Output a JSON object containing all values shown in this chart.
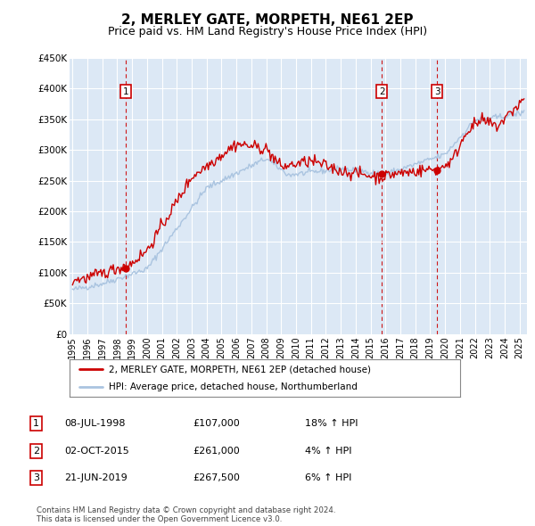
{
  "title": "2, MERLEY GATE, MORPETH, NE61 2EP",
  "subtitle": "Price paid vs. HM Land Registry's House Price Index (HPI)",
  "background_color": "#ffffff",
  "plot_bg_color": "#dce8f5",
  "legend_line1": "2, MERLEY GATE, MORPETH, NE61 2EP (detached house)",
  "legend_line2": "HPI: Average price, detached house, Northumberland",
  "footer": "Contains HM Land Registry data © Crown copyright and database right 2024.\nThis data is licensed under the Open Government Licence v3.0.",
  "transactions": [
    {
      "num": 1,
      "date": "08-JUL-1998",
      "price": "£107,000",
      "hpi": "18% ↑ HPI",
      "year": 1998.55
    },
    {
      "num": 2,
      "date": "02-OCT-2015",
      "price": "£261,000",
      "hpi": "4% ↑ HPI",
      "year": 2015.75
    },
    {
      "num": 3,
      "date": "21-JUN-2019",
      "price": "£267,500",
      "hpi": "6% ↑ HPI",
      "year": 2019.47
    }
  ],
  "transaction_values": [
    107000,
    261000,
    267500
  ],
  "hpi_line_color": "#aac4e0",
  "price_line_color": "#cc0000",
  "dashed_line_color": "#cc0000",
  "ylim": [
    0,
    450000
  ],
  "yticks": [
    0,
    50000,
    100000,
    150000,
    200000,
    250000,
    300000,
    350000,
    400000,
    450000
  ],
  "ytick_labels": [
    "£0",
    "£50K",
    "£100K",
    "£150K",
    "£200K",
    "£250K",
    "£300K",
    "£350K",
    "£400K",
    "£450K"
  ],
  "xlim_start": 1994.8,
  "xlim_end": 2025.5
}
